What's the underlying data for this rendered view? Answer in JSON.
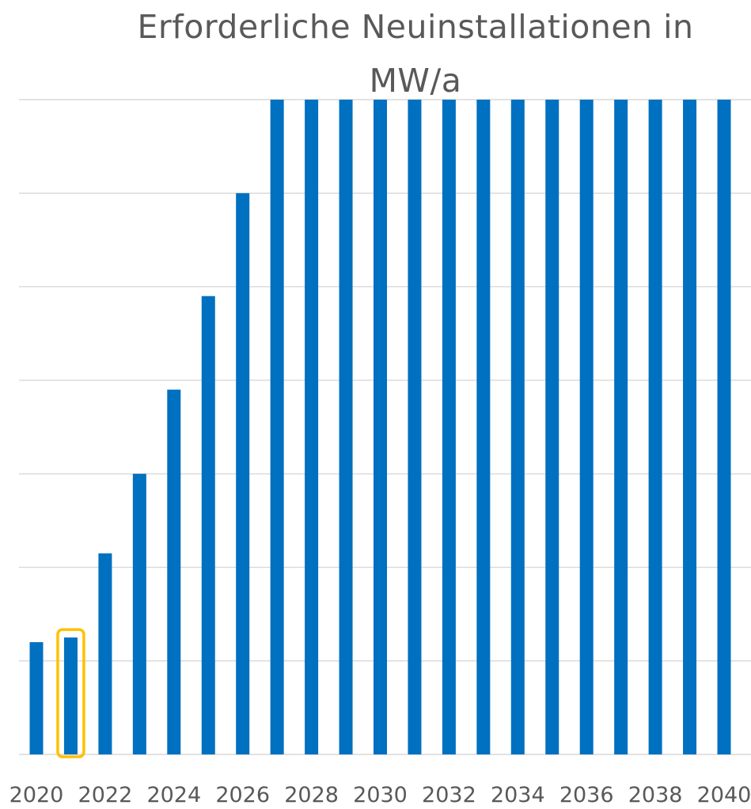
{
  "chart_data": {
    "type": "bar",
    "title_lines": [
      "Erforderliche Neuinstallationen in",
      "MW/a"
    ],
    "xlabel": "",
    "ylabel": "",
    "categories": [
      "2020",
      "2021",
      "2022",
      "2023",
      "2024",
      "2025",
      "2026",
      "2027",
      "2028",
      "2029",
      "2030",
      "2031",
      "2032",
      "2033",
      "2034",
      "2035",
      "2036",
      "2037",
      "2038",
      "2039",
      "2040"
    ],
    "x_tick_labels": [
      "2020",
      "2022",
      "2024",
      "2026",
      "2028",
      "2030",
      "2032",
      "2034",
      "2036",
      "2038",
      "2040"
    ],
    "values": [
      1.2,
      1.25,
      2.15,
      3.0,
      3.9,
      4.9,
      6.0,
      7.0,
      7.0,
      7.0,
      7.0,
      7.0,
      7.0,
      7.0,
      7.0,
      7.0,
      7.0,
      7.0,
      7.0,
      7.0,
      7.0
    ],
    "ylim": [
      0,
      7
    ],
    "grid": true,
    "highlight": {
      "category": "2021",
      "color": "#ffc000"
    },
    "bar_color": "#0070c0"
  }
}
